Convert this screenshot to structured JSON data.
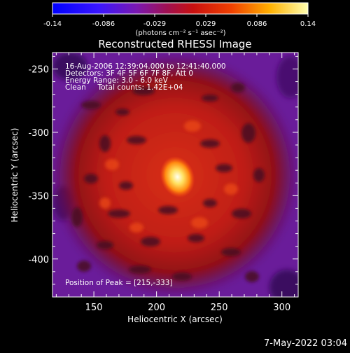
{
  "colorbar": {
    "ticks": [
      "-0.14",
      "-0.086",
      "-0.029",
      "0.029",
      "0.086",
      "0.14"
    ],
    "unit_label": "(photons cm⁻² s⁻¹ asec⁻²)"
  },
  "plot": {
    "title": "Reconstructed RHESSI Image",
    "annotations": [
      "16-Aug-2006 12:39:04.000 to 12:41:40.000",
      "Detectors: 3F 4F 5F 6F 7F 8F, Att 0",
      "Energy Range: 3.0 - 6.0 keV",
      "Clean     Total counts: 1.42E+04"
    ],
    "peak_label": "Position of Peak = [215,-333]",
    "xlabel": "Heliocentric X (arcsec)",
    "ylabel": "Heliocentric Y (arcsec)",
    "xticks": [
      "150",
      "200",
      "250",
      "300"
    ],
    "yticks": [
      "-250",
      "-300",
      "-350",
      "-400"
    ],
    "xlim": [
      117,
      313
    ],
    "ylim": [
      -430,
      -237
    ],
    "peak": [
      215,
      -333
    ]
  },
  "footer": {
    "timestamp": "7-May-2022 03:04"
  }
}
